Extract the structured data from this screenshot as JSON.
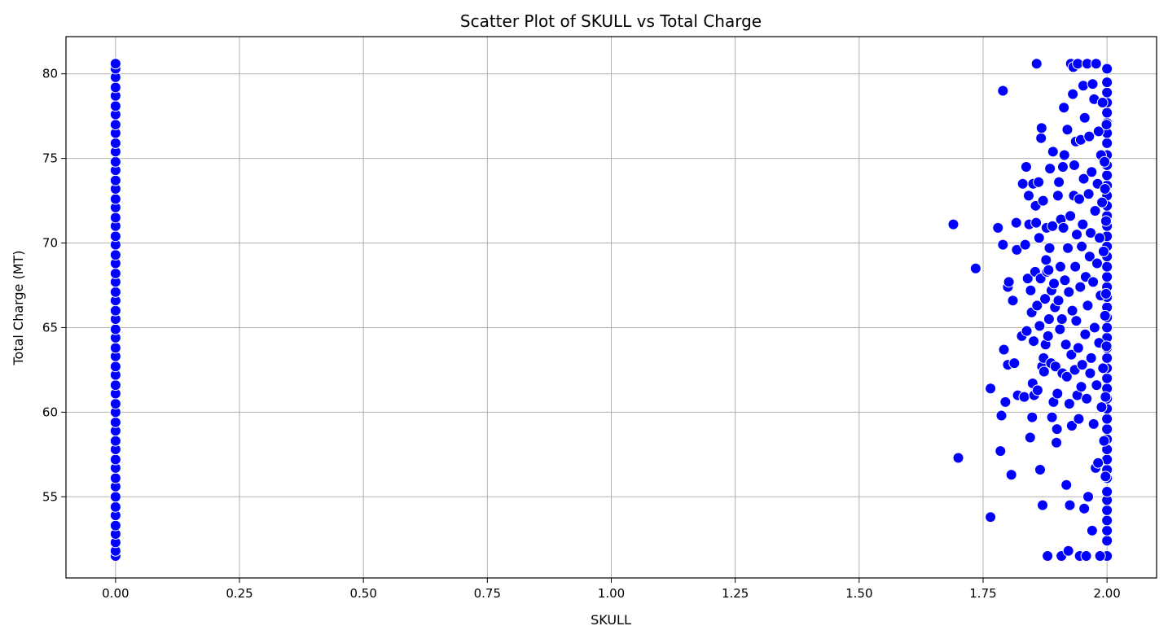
{
  "chart_data": {
    "type": "scatter",
    "title": "Scatter Plot of SKULL vs Total Charge",
    "xlabel": "SKULL",
    "ylabel": "Total Charge (MT)",
    "xlim": [
      -0.1,
      2.1
    ],
    "ylim": [
      50.2,
      82.2
    ],
    "xticks": [
      0.0,
      0.25,
      0.5,
      0.75,
      1.0,
      1.25,
      1.5,
      1.75,
      2.0
    ],
    "xtick_labels": [
      "0.00",
      "0.25",
      "0.50",
      "0.75",
      "1.00",
      "1.25",
      "1.50",
      "1.75",
      "2.00"
    ],
    "yticks": [
      55,
      60,
      65,
      70,
      75,
      80
    ],
    "ytick_labels": [
      "55",
      "60",
      "65",
      "70",
      "75",
      "80"
    ],
    "grid": true,
    "marker_color": "#0000ff",
    "marker_edge": "#ffffff",
    "series": [
      {
        "points": [
          [
            0,
            51.5
          ],
          [
            0,
            51.8
          ],
          [
            0,
            52.3
          ],
          [
            0,
            52.8
          ],
          [
            0,
            53.3
          ],
          [
            0,
            53.9
          ],
          [
            0,
            54.4
          ],
          [
            0,
            55.0
          ],
          [
            0,
            55.6
          ],
          [
            0,
            56.1
          ],
          [
            0,
            56.7
          ],
          [
            0,
            57.2
          ],
          [
            0,
            57.8
          ],
          [
            0,
            58.3
          ],
          [
            0,
            58.9
          ],
          [
            0,
            59.4
          ],
          [
            0,
            60.0
          ],
          [
            0,
            60.5
          ],
          [
            0,
            61.1
          ],
          [
            0,
            61.6
          ],
          [
            0,
            62.2
          ],
          [
            0,
            62.7
          ],
          [
            0,
            63.3
          ],
          [
            0,
            63.8
          ],
          [
            0,
            64.4
          ],
          [
            0,
            64.9
          ],
          [
            0,
            65.5
          ],
          [
            0,
            66.0
          ],
          [
            0,
            66.6
          ],
          [
            0,
            67.1
          ],
          [
            0,
            67.7
          ],
          [
            0,
            68.2
          ],
          [
            0,
            68.8
          ],
          [
            0,
            69.3
          ],
          [
            0,
            69.9
          ],
          [
            0,
            70.4
          ],
          [
            0,
            71.0
          ],
          [
            0,
            71.5
          ],
          [
            0,
            72.1
          ],
          [
            0,
            72.6
          ],
          [
            0,
            73.2
          ],
          [
            0,
            73.7
          ],
          [
            0,
            74.3
          ],
          [
            0,
            74.8
          ],
          [
            0,
            75.4
          ],
          [
            0,
            75.9
          ],
          [
            0,
            76.5
          ],
          [
            0,
            77.0
          ],
          [
            0,
            77.6
          ],
          [
            0,
            78.1
          ],
          [
            0,
            78.7
          ],
          [
            0,
            79.2
          ],
          [
            0,
            79.8
          ],
          [
            0,
            80.3
          ],
          [
            0,
            80.6
          ],
          [
            2,
            51.5
          ],
          [
            2,
            52.4
          ],
          [
            2,
            53.0
          ],
          [
            2,
            53.6
          ],
          [
            2,
            54.2
          ],
          [
            2,
            54.8
          ],
          [
            2,
            55.3
          ],
          [
            2,
            56.1
          ],
          [
            2,
            56.6
          ],
          [
            2,
            57.2
          ],
          [
            2,
            57.8
          ],
          [
            2,
            58.4
          ],
          [
            2,
            59.0
          ],
          [
            2,
            59.6
          ],
          [
            2,
            60.2
          ],
          [
            2,
            60.8
          ],
          [
            2,
            61.4
          ],
          [
            2,
            62.0
          ],
          [
            2,
            62.6
          ],
          [
            2,
            63.2
          ],
          [
            2,
            63.8
          ],
          [
            2,
            64.4
          ],
          [
            2,
            65.0
          ],
          [
            2,
            65.6
          ],
          [
            2,
            66.2
          ],
          [
            2,
            66.8
          ],
          [
            2,
            67.4
          ],
          [
            2,
            68.0
          ],
          [
            2,
            68.6
          ],
          [
            2,
            69.2
          ],
          [
            2,
            69.8
          ],
          [
            2,
            70.4
          ],
          [
            2,
            71.0
          ],
          [
            2,
            71.6
          ],
          [
            2,
            72.2
          ],
          [
            2,
            72.8
          ],
          [
            2,
            73.4
          ],
          [
            2,
            74.0
          ],
          [
            2,
            74.6
          ],
          [
            2,
            75.2
          ],
          [
            2,
            75.9
          ],
          [
            2,
            76.5
          ],
          [
            2,
            77.1
          ],
          [
            2,
            77.7
          ],
          [
            2,
            78.3
          ],
          [
            2,
            78.9
          ],
          [
            2,
            79.5
          ],
          [
            2,
            80.3
          ],
          [
            1.69,
            71.1
          ],
          [
            1.7,
            57.3
          ],
          [
            1.735,
            68.5
          ],
          [
            1.765,
            61.4
          ],
          [
            1.765,
            53.8
          ],
          [
            1.78,
            70.9
          ],
          [
            1.785,
            57.7
          ],
          [
            1.787,
            59.8
          ],
          [
            1.79,
            69.9
          ],
          [
            1.79,
            79.0
          ],
          [
            1.792,
            63.7
          ],
          [
            1.795,
            60.6
          ],
          [
            1.8,
            67.4
          ],
          [
            1.802,
            67.7
          ],
          [
            1.8,
            62.8
          ],
          [
            1.807,
            56.3
          ],
          [
            1.81,
            66.6
          ],
          [
            1.813,
            62.9
          ],
          [
            1.817,
            71.2
          ],
          [
            1.818,
            69.6
          ],
          [
            1.82,
            61.0
          ],
          [
            1.828,
            64.5
          ],
          [
            1.83,
            73.5
          ],
          [
            1.833,
            60.9
          ],
          [
            1.835,
            69.9
          ],
          [
            1.837,
            74.5
          ],
          [
            1.838,
            64.8
          ],
          [
            1.84,
            67.9
          ],
          [
            1.842,
            72.8
          ],
          [
            1.843,
            71.1
          ],
          [
            1.845,
            58.5
          ],
          [
            1.846,
            67.2
          ],
          [
            1.848,
            65.9
          ],
          [
            1.849,
            59.7
          ],
          [
            1.85,
            61.7
          ],
          [
            1.851,
            73.5
          ],
          [
            1.852,
            64.2
          ],
          [
            1.853,
            61.0
          ],
          [
            1.855,
            68.3
          ],
          [
            1.856,
            72.2
          ],
          [
            1.857,
            71.2
          ],
          [
            1.858,
            80.6
          ],
          [
            1.859,
            66.3
          ],
          [
            1.86,
            61.3
          ],
          [
            1.862,
            73.6
          ],
          [
            1.863,
            70.3
          ],
          [
            1.864,
            65.1
          ],
          [
            1.865,
            56.6
          ],
          [
            1.866,
            67.9
          ],
          [
            1.867,
            76.2
          ],
          [
            1.868,
            76.8
          ],
          [
            1.869,
            62.7
          ],
          [
            1.87,
            54.5
          ],
          [
            1.871,
            72.5
          ],
          [
            1.872,
            63.2
          ],
          [
            1.873,
            62.4
          ],
          [
            1.875,
            66.7
          ],
          [
            1.876,
            64.0
          ],
          [
            1.877,
            69.0
          ],
          [
            1.878,
            70.9
          ],
          [
            1.879,
            68.3
          ],
          [
            1.88,
            51.5
          ],
          [
            1.881,
            64.5
          ],
          [
            1.882,
            68.4
          ],
          [
            1.883,
            65.5
          ],
          [
            1.884,
            69.7
          ],
          [
            1.885,
            74.4
          ],
          [
            1.887,
            62.9
          ],
          [
            1.888,
            67.2
          ],
          [
            1.889,
            59.7
          ],
          [
            1.89,
            71.0
          ],
          [
            1.891,
            75.4
          ],
          [
            1.892,
            60.6
          ],
          [
            1.893,
            67.6
          ],
          [
            1.895,
            66.2
          ],
          [
            1.896,
            62.7
          ],
          [
            1.898,
            58.2
          ],
          [
            1.899,
            59.0
          ],
          [
            1.9,
            61.1
          ],
          [
            1.901,
            72.8
          ],
          [
            1.902,
            66.6
          ],
          [
            1.903,
            73.6
          ],
          [
            1.905,
            64.9
          ],
          [
            1.906,
            68.6
          ],
          [
            1.907,
            71.4
          ],
          [
            1.908,
            51.5
          ],
          [
            1.909,
            65.5
          ],
          [
            1.91,
            62.3
          ],
          [
            1.911,
            74.5
          ],
          [
            1.912,
            70.9
          ],
          [
            1.913,
            78.0
          ],
          [
            1.914,
            75.2
          ],
          [
            1.915,
            67.8
          ],
          [
            1.917,
            64.0
          ],
          [
            1.918,
            55.7
          ],
          [
            1.919,
            62.1
          ],
          [
            1.92,
            76.7
          ],
          [
            1.921,
            69.7
          ],
          [
            1.922,
            51.8
          ],
          [
            1.923,
            67.1
          ],
          [
            1.924,
            60.5
          ],
          [
            1.925,
            54.5
          ],
          [
            1.926,
            71.6
          ],
          [
            1.927,
            80.6
          ],
          [
            1.928,
            63.4
          ],
          [
            1.929,
            59.2
          ],
          [
            1.93,
            66.0
          ],
          [
            1.931,
            78.8
          ],
          [
            1.932,
            80.4
          ],
          [
            1.933,
            72.8
          ],
          [
            1.934,
            74.6
          ],
          [
            1.935,
            62.5
          ],
          [
            1.936,
            68.6
          ],
          [
            1.937,
            76.0
          ],
          [
            1.938,
            65.4
          ],
          [
            1.939,
            70.5
          ],
          [
            1.94,
            61.0
          ],
          [
            1.941,
            80.6
          ],
          [
            1.942,
            63.8
          ],
          [
            1.943,
            59.6
          ],
          [
            1.944,
            72.6
          ],
          [
            1.945,
            51.5
          ],
          [
            1.946,
            67.4
          ],
          [
            1.947,
            76.1
          ],
          [
            1.948,
            61.5
          ],
          [
            1.949,
            69.8
          ],
          [
            1.95,
            62.8
          ],
          [
            1.951,
            71.1
          ],
          [
            1.952,
            79.3
          ],
          [
            1.953,
            73.8
          ],
          [
            1.954,
            54.3
          ],
          [
            1.955,
            77.4
          ],
          [
            1.956,
            64.6
          ],
          [
            1.957,
            68.0
          ],
          [
            1.958,
            51.5
          ],
          [
            1.959,
            60.8
          ],
          [
            1.96,
            80.6
          ],
          [
            1.961,
            66.3
          ],
          [
            1.962,
            55.0
          ],
          [
            1.963,
            72.9
          ],
          [
            1.964,
            76.3
          ],
          [
            1.965,
            69.2
          ],
          [
            1.966,
            62.3
          ],
          [
            1.967,
            70.6
          ],
          [
            1.968,
            63.2
          ],
          [
            1.969,
            74.2
          ],
          [
            1.97,
            53.0
          ],
          [
            1.971,
            79.4
          ],
          [
            1.972,
            67.7
          ],
          [
            1.973,
            59.3
          ],
          [
            1.974,
            78.5
          ],
          [
            1.975,
            65.0
          ],
          [
            1.976,
            71.9
          ],
          [
            1.977,
            56.7
          ],
          [
            1.978,
            80.6
          ],
          [
            1.979,
            61.6
          ],
          [
            1.98,
            68.8
          ],
          [
            1.981,
            73.5
          ],
          [
            1.982,
            57.0
          ],
          [
            1.983,
            76.6
          ],
          [
            1.984,
            64.1
          ],
          [
            1.985,
            70.3
          ],
          [
            1.986,
            51.5
          ],
          [
            1.987,
            66.9
          ],
          [
            1.988,
            75.2
          ],
          [
            1.989,
            60.3
          ],
          [
            1.99,
            72.4
          ],
          [
            1.991,
            78.3
          ],
          [
            1.992,
            62.6
          ],
          [
            1.993,
            69.5
          ],
          [
            1.994,
            58.3
          ],
          [
            1.995,
            74.8
          ],
          [
            1.996,
            65.7
          ],
          [
            1.997,
            56.2
          ],
          [
            1.998,
            71.3
          ],
          [
            1.999,
            63.9
          ],
          [
            1.999,
            77.0
          ],
          [
            1.998,
            67.0
          ],
          [
            1.997,
            60.9
          ],
          [
            1.996,
            73.2
          ]
        ]
      }
    ]
  }
}
